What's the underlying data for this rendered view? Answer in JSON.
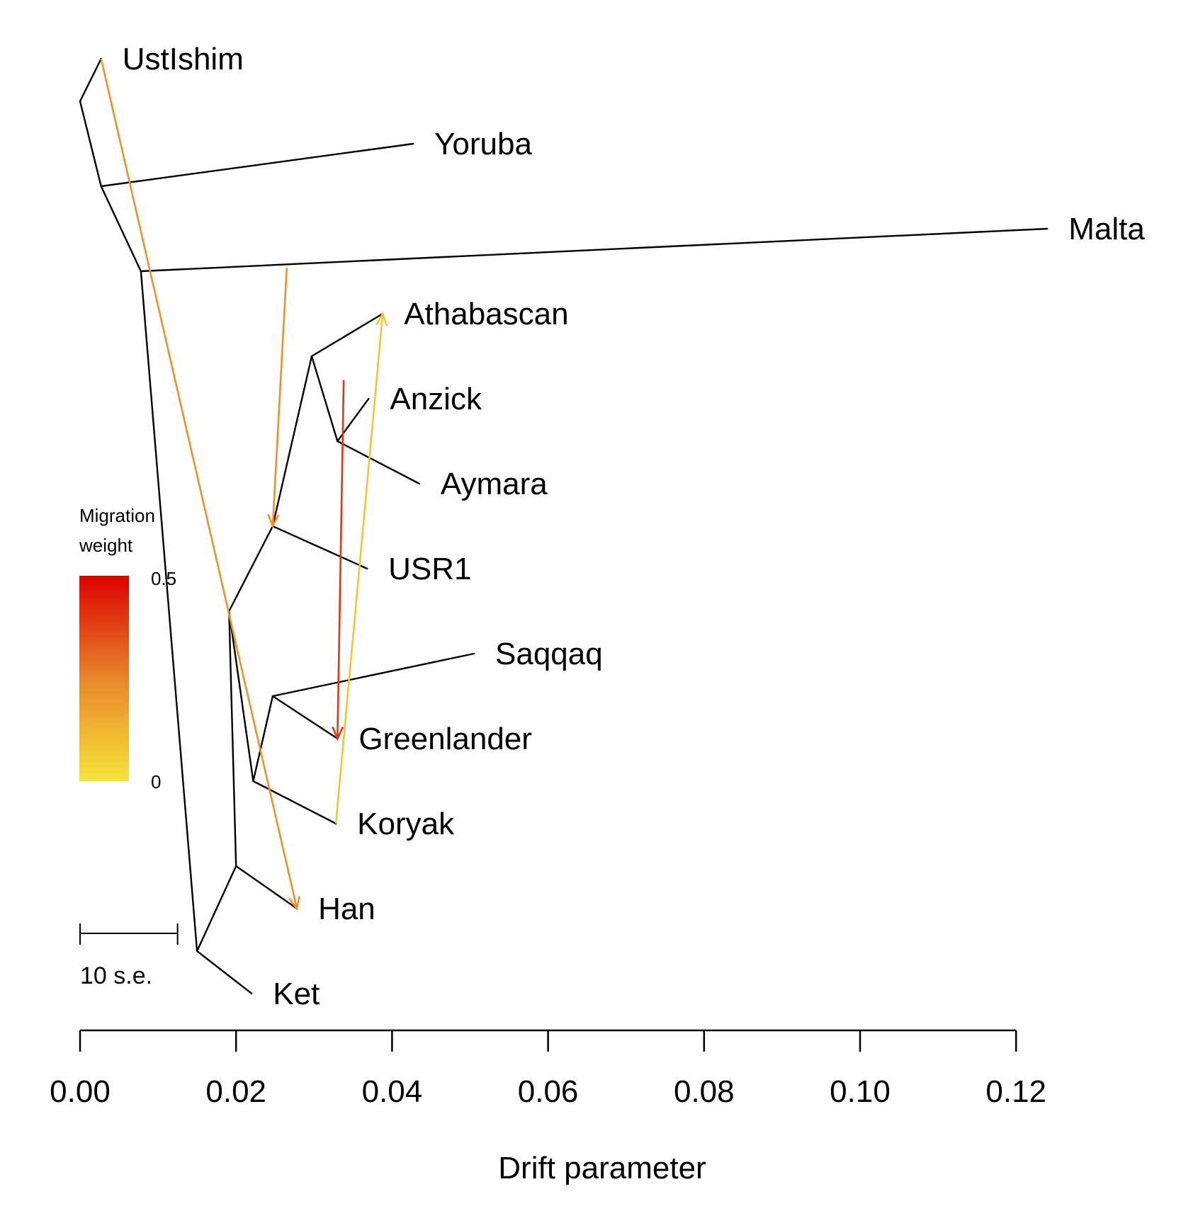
{
  "chart_data": {
    "type": "tree",
    "xlabel": "Drift parameter",
    "xlim": [
      0,
      0.12
    ],
    "xticks": [
      "0.00",
      "0.02",
      "0.04",
      "0.06",
      "0.08",
      "0.10",
      "0.12"
    ],
    "xtick_values": [
      0.0,
      0.02,
      0.04,
      0.06,
      0.08,
      0.1,
      0.12
    ],
    "nodes": [
      {
        "id": "n1",
        "drift": 0.0,
        "row": 0.5
      },
      {
        "id": "n2",
        "drift": 0.0027,
        "row": 1.5
      },
      {
        "id": "n3",
        "drift": 0.0078,
        "row": 2.5
      },
      {
        "id": "n4",
        "drift": 0.015,
        "row": 10.5
      },
      {
        "id": "n5",
        "drift": 0.0191,
        "row": 6.5
      },
      {
        "id": "n6",
        "drift": 0.0247,
        "row": 5.5
      },
      {
        "id": "n7",
        "drift": 0.0297,
        "row": 3.5
      },
      {
        "id": "n8",
        "drift": 0.033,
        "row": 4.5
      },
      {
        "id": "n9",
        "drift": 0.02,
        "row": 9.5
      },
      {
        "id": "n10",
        "drift": 0.0247,
        "row": 7.5
      },
      {
        "id": "n11",
        "drift": 0.0222,
        "row": 8.5
      }
    ],
    "leaves": [
      {
        "label": "UstIshim",
        "drift": 0.0027,
        "row": 0
      },
      {
        "label": "Yoruba",
        "drift": 0.0427,
        "row": 1
      },
      {
        "label": "Malta",
        "drift": 0.124,
        "row": 2
      },
      {
        "label": "Athabascan",
        "drift": 0.0388,
        "row": 3
      },
      {
        "label": "Anzick",
        "drift": 0.037,
        "row": 4
      },
      {
        "label": "Aymara",
        "drift": 0.0435,
        "row": 5
      },
      {
        "label": "USR1",
        "drift": 0.0368,
        "row": 6
      },
      {
        "label": "Saqqaq",
        "drift": 0.0505,
        "row": 7
      },
      {
        "label": "Greenlander",
        "drift": 0.033,
        "row": 8
      },
      {
        "label": "Koryak",
        "drift": 0.0328,
        "row": 9
      },
      {
        "label": "Han",
        "drift": 0.0278,
        "row": 10
      },
      {
        "label": "Ket",
        "drift": 0.022,
        "row": 11
      }
    ],
    "edges": [
      [
        "n1",
        "UstIshim"
      ],
      [
        "n1",
        "n2"
      ],
      [
        "n2",
        "Yoruba"
      ],
      [
        "n2",
        "n3"
      ],
      [
        "n3",
        "Malta"
      ],
      [
        "n3",
        "n4"
      ],
      [
        "n4",
        "Ket"
      ],
      [
        "n4",
        "n9"
      ],
      [
        "n9",
        "Han"
      ],
      [
        "n9",
        "n5"
      ],
      [
        "n5",
        "n11"
      ],
      [
        "n5",
        "n6"
      ],
      [
        "n6",
        "USR1"
      ],
      [
        "n6",
        "n7"
      ],
      [
        "n7",
        "Athabascan"
      ],
      [
        "n7",
        "n8"
      ],
      [
        "n8",
        "Anzick"
      ],
      [
        "n8",
        "Aymara"
      ],
      [
        "n11",
        "Koryak"
      ],
      [
        "n11",
        "n10"
      ],
      [
        "n10",
        "Saqqaq"
      ],
      [
        "n10",
        "Greenlander"
      ]
    ],
    "migrations": [
      {
        "from": {
          "drift": 0.0027,
          "row": 0
        },
        "to": {
          "drift": 0.0278,
          "row": 10
        },
        "weight": 0.22
      },
      {
        "from": {
          "drift": 0.0265,
          "row": 2.46
        },
        "to": {
          "drift": 0.0247,
          "row": 5.5
        },
        "weight": 0.22
      },
      {
        "from": {
          "drift": 0.0338,
          "row": 3.78
        },
        "to": {
          "drift": 0.033,
          "row": 8
        },
        "weight": 0.4
      },
      {
        "from": {
          "drift": 0.0328,
          "row": 9
        },
        "to": {
          "drift": 0.0388,
          "row": 3
        },
        "weight": 0.08
      }
    ],
    "legend": {
      "title_line1": "Migration",
      "title_line2": "weight",
      "max_label": "0.5",
      "min_label": "0",
      "max_value": 0.5,
      "min_value": 0,
      "color_high": "#dd0000",
      "color_mid": "#e8862a",
      "color_low": "#f7e33a"
    },
    "scale_bar": {
      "label": "10 s.e.",
      "drift_length": 0.0125
    }
  }
}
